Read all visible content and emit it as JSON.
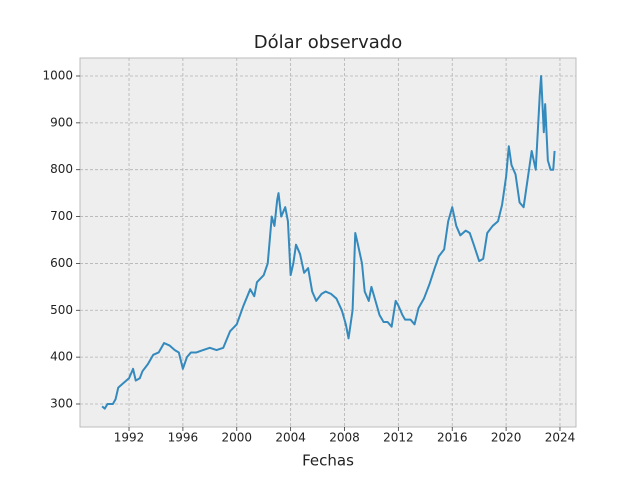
{
  "chart_data": {
    "type": "line",
    "title": "Dólar observado",
    "x_label": "Fechas",
    "x": [
      1990.0,
      1990.2,
      1990.4,
      1990.8,
      1991.0,
      1991.2,
      1991.6,
      1992.0,
      1992.3,
      1992.5,
      1992.8,
      1993.0,
      1993.4,
      1993.8,
      1994.2,
      1994.6,
      1995.0,
      1995.4,
      1995.7,
      1996.0,
      1996.3,
      1996.6,
      1997.0,
      1997.5,
      1998.0,
      1998.5,
      1999.0,
      1999.5,
      2000.0,
      2000.5,
      2001.0,
      2001.3,
      2001.5,
      2002.0,
      2002.3,
      2002.6,
      2002.8,
      2003.0,
      2003.1,
      2003.3,
      2003.6,
      2003.8,
      2004.0,
      2004.2,
      2004.4,
      2004.7,
      2005.0,
      2005.3,
      2005.6,
      2005.9,
      2006.3,
      2006.6,
      2007.0,
      2007.4,
      2007.8,
      2008.1,
      2008.3,
      2008.6,
      2008.8,
      2009.0,
      2009.3,
      2009.5,
      2009.8,
      2010.0,
      2010.3,
      2010.6,
      2010.9,
      2011.2,
      2011.5,
      2011.8,
      2012.0,
      2012.3,
      2012.5,
      2012.9,
      2013.2,
      2013.5,
      2013.9,
      2014.3,
      2014.7,
      2015.0,
      2015.4,
      2015.7,
      2016.0,
      2016.3,
      2016.6,
      2017.0,
      2017.3,
      2017.6,
      2018.0,
      2018.3,
      2018.6,
      2019.0,
      2019.4,
      2019.7,
      2020.0,
      2020.2,
      2020.4,
      2020.7,
      2021.0,
      2021.3,
      2021.6,
      2021.9,
      2022.2,
      2022.5,
      2022.6,
      2022.8,
      2022.9,
      2023.1,
      2023.3,
      2023.5,
      2023.6
    ],
    "series": [
      {
        "color": "#348abd",
        "values": [
          295,
          290,
          300,
          300,
          310,
          335,
          345,
          355,
          375,
          350,
          355,
          370,
          385,
          405,
          410,
          430,
          425,
          415,
          410,
          375,
          400,
          410,
          410,
          415,
          420,
          415,
          420,
          455,
          470,
          510,
          545,
          530,
          560,
          575,
          600,
          700,
          680,
          735,
          750,
          700,
          720,
          690,
          575,
          600,
          640,
          620,
          580,
          590,
          540,
          520,
          535,
          540,
          535,
          525,
          500,
          470,
          440,
          500,
          665,
          640,
          600,
          540,
          520,
          550,
          520,
          490,
          475,
          475,
          465,
          520,
          510,
          490,
          480,
          480,
          470,
          505,
          525,
          555,
          590,
          615,
          630,
          690,
          720,
          680,
          660,
          670,
          665,
          640,
          605,
          610,
          665,
          680,
          690,
          725,
          785,
          850,
          810,
          790,
          730,
          720,
          780,
          840,
          800,
          960,
          1000,
          880,
          940,
          820,
          800,
          800,
          840
        ]
      }
    ],
    "xlim": [
      1988.36,
      2025.19
    ],
    "ylim": [
      250.9,
      1038.4
    ],
    "xticks": [
      1992,
      1996,
      2000,
      2004,
      2008,
      2012,
      2016,
      2020,
      2024
    ],
    "yticks": [
      300,
      400,
      500,
      600,
      700,
      800,
      900,
      1000
    ],
    "grid": true
  }
}
